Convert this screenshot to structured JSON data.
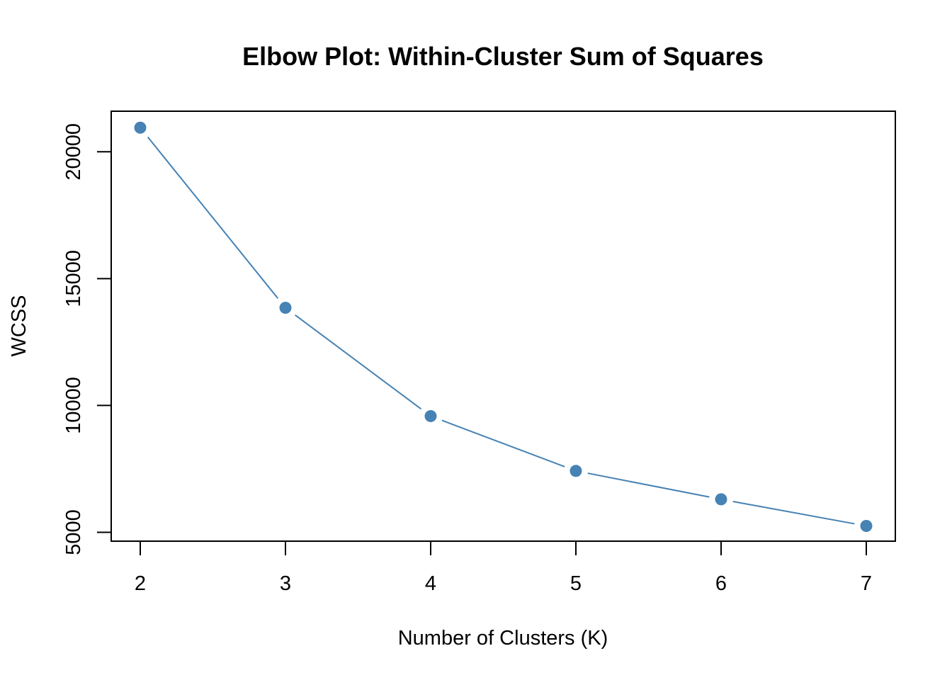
{
  "chart_data": {
    "type": "line",
    "title": "Elbow Plot: Within-Cluster Sum of Squares",
    "xlabel": "Number of Clusters (K)",
    "ylabel": "WCSS",
    "x": [
      2,
      3,
      4,
      5,
      6,
      7
    ],
    "series": [
      {
        "values": [
          20950,
          13850,
          9580,
          7420,
          6300,
          5250
        ]
      }
    ],
    "xticks": [
      "2",
      "3",
      "4",
      "5",
      "6",
      "7"
    ],
    "yticks": [
      "5000",
      "10000",
      "15000",
      "20000"
    ],
    "xlim": [
      1.8,
      7.2
    ],
    "ylim": [
      4650,
      21600
    ],
    "grid": false,
    "color": "#4682B4"
  }
}
